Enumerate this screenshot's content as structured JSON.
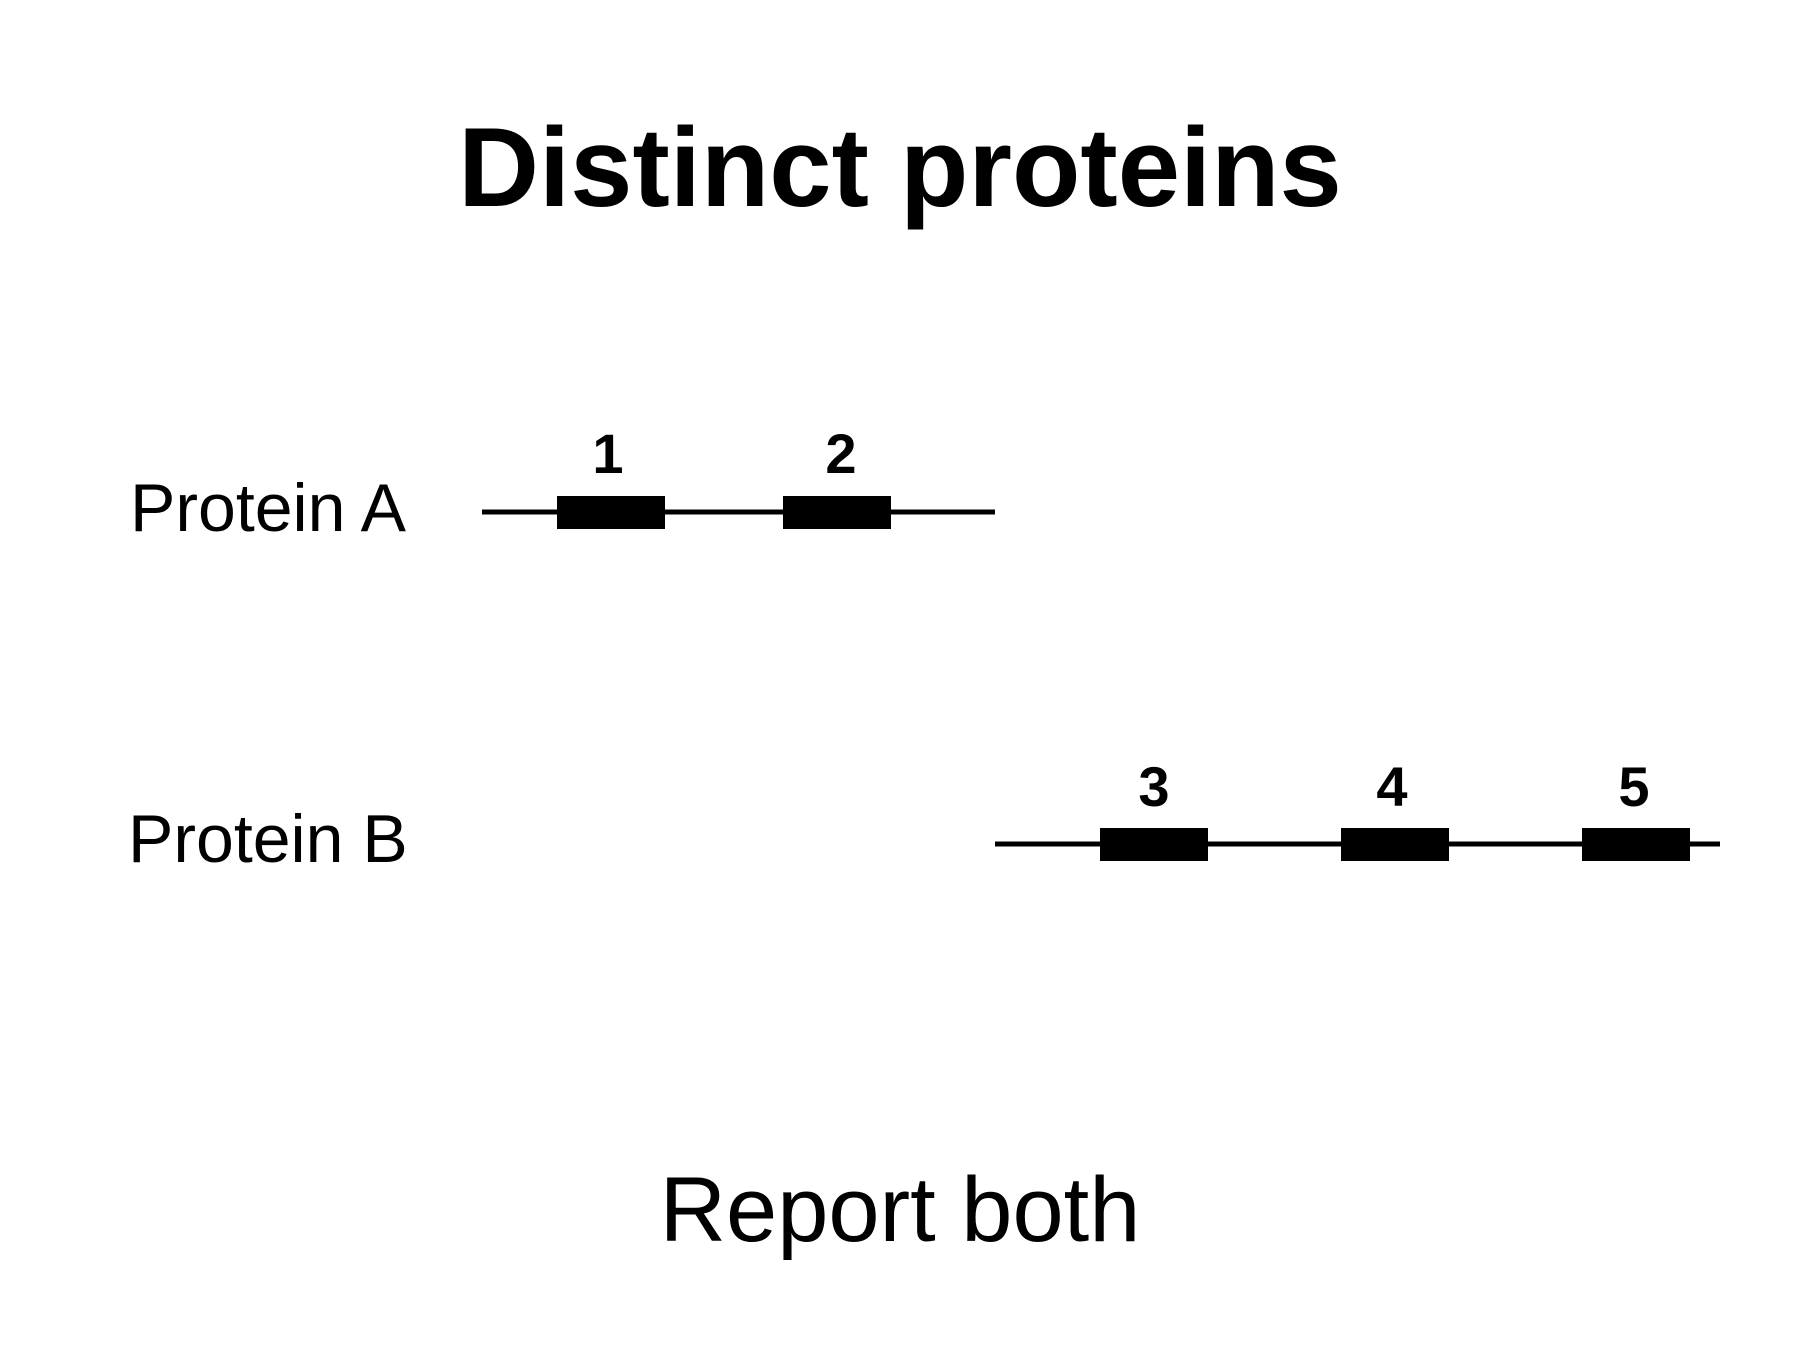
{
  "title": "Distinct proteins",
  "proteins": [
    {
      "label": "Protein A",
      "domains": [
        {
          "number": "1"
        },
        {
          "number": "2"
        }
      ]
    },
    {
      "label": "Protein B",
      "domains": [
        {
          "number": "3"
        },
        {
          "number": "4"
        },
        {
          "number": "5"
        }
      ]
    }
  ],
  "footer": "Report both"
}
